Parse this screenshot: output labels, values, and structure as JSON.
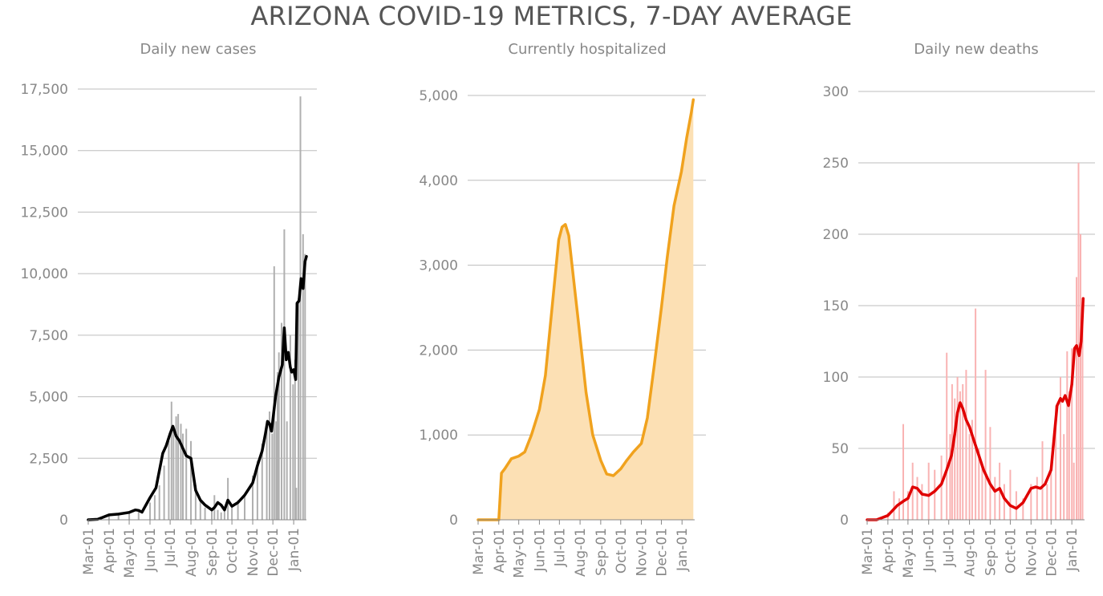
{
  "title": "ARIZONA COVID-19 METRICS, 7-DAY AVERAGE",
  "chart_data": [
    {
      "type": "bar",
      "title": "Daily new cases",
      "ylim": [
        0,
        17500
      ],
      "yticks": [
        0,
        2500,
        5000,
        7500,
        10000,
        12500,
        15000,
        17500
      ],
      "ytick_labels": [
        "0",
        "2,500",
        "5,000",
        "7,500",
        "10,000",
        "12,500",
        "15,000",
        "17,500"
      ],
      "xtick_labels": [
        "Mar-01",
        "Apr-01",
        "May-01",
        "Jun-01",
        "Jul-01",
        "Aug-01",
        "Sep-01",
        "Oct-01",
        "Nov-01",
        "Dec-01",
        "Jan-01"
      ],
      "x_range": [
        "2020-03-01",
        "2021-01-20"
      ],
      "grid": "y",
      "colors": {
        "bar": "#b0b0b0",
        "line": "#000000"
      },
      "series": [
        {
          "kind": "bar",
          "x": [
            "2020-03-15",
            "2020-04-01",
            "2020-04-15",
            "2020-05-01",
            "2020-05-15",
            "2020-06-01",
            "2020-06-08",
            "2020-06-15",
            "2020-06-22",
            "2020-06-29",
            "2020-07-03",
            "2020-07-06",
            "2020-07-10",
            "2020-07-13",
            "2020-07-17",
            "2020-07-20",
            "2020-07-25",
            "2020-08-01",
            "2020-08-08",
            "2020-08-15",
            "2020-08-22",
            "2020-09-01",
            "2020-09-05",
            "2020-09-10",
            "2020-09-15",
            "2020-09-20",
            "2020-09-25",
            "2020-10-01",
            "2020-10-10",
            "2020-10-20",
            "2020-11-01",
            "2020-11-08",
            "2020-11-15",
            "2020-11-22",
            "2020-11-26",
            "2020-11-30",
            "2020-12-03",
            "2020-12-06",
            "2020-12-08",
            "2020-12-10",
            "2020-12-14",
            "2020-12-18",
            "2020-12-22",
            "2020-12-27",
            "2020-12-31",
            "2021-01-03",
            "2021-01-05",
            "2021-01-08",
            "2021-01-11",
            "2021-01-15",
            "2021-01-18"
          ],
          "values": [
            30,
            180,
            240,
            320,
            420,
            700,
            1000,
            1400,
            2200,
            3200,
            4800,
            3800,
            4200,
            4300,
            3900,
            3500,
            3700,
            3200,
            1400,
            800,
            500,
            400,
            1000,
            400,
            300,
            500,
            1700,
            600,
            800,
            1000,
            1800,
            2400,
            3100,
            4000,
            4400,
            3500,
            10300,
            4000,
            6000,
            6800,
            8000,
            11800,
            4000,
            7500,
            5500,
            6500,
            1300,
            9000,
            17200,
            11600,
            10800
          ]
        },
        {
          "kind": "line",
          "x": [
            "2020-03-01",
            "2020-03-15",
            "2020-04-01",
            "2020-04-15",
            "2020-05-01",
            "2020-05-10",
            "2020-05-15",
            "2020-05-20",
            "2020-06-01",
            "2020-06-10",
            "2020-06-20",
            "2020-06-25",
            "2020-07-01",
            "2020-07-05",
            "2020-07-10",
            "2020-07-15",
            "2020-07-20",
            "2020-07-25",
            "2020-08-01",
            "2020-08-08",
            "2020-08-15",
            "2020-08-22",
            "2020-09-01",
            "2020-09-05",
            "2020-09-10",
            "2020-09-15",
            "2020-09-20",
            "2020-09-25",
            "2020-10-01",
            "2020-10-10",
            "2020-10-20",
            "2020-11-01",
            "2020-11-08",
            "2020-11-15",
            "2020-11-20",
            "2020-11-23",
            "2020-11-26",
            "2020-11-29",
            "2020-12-05",
            "2020-12-10",
            "2020-12-12",
            "2020-12-15",
            "2020-12-18",
            "2020-12-21",
            "2020-12-24",
            "2020-12-27",
            "2020-12-29",
            "2021-01-01",
            "2021-01-04",
            "2021-01-06",
            "2021-01-09",
            "2021-01-12",
            "2021-01-15",
            "2021-01-18",
            "2021-01-20"
          ],
          "values": [
            0,
            20,
            200,
            230,
            300,
            400,
            380,
            310,
            900,
            1300,
            2700,
            3000,
            3500,
            3800,
            3400,
            3200,
            2900,
            2600,
            2500,
            1200,
            800,
            600,
            400,
            500,
            700,
            600,
            400,
            800,
            550,
            700,
            1000,
            1500,
            2200,
            2800,
            3500,
            4000,
            3900,
            3600,
            5000,
            5800,
            6000,
            6300,
            7800,
            6500,
            6800,
            6200,
            6000,
            6100,
            5700,
            8800,
            8900,
            9800,
            9400,
            10500,
            10700
          ]
        }
      ]
    },
    {
      "type": "area",
      "title": "Currently hospitalized",
      "ylim": [
        0,
        5000
      ],
      "yticks": [
        0,
        1000,
        2000,
        3000,
        4000,
        5000
      ],
      "ytick_labels": [
        "0",
        "1,000",
        "2,000",
        "3,000",
        "4,000",
        "5,000"
      ],
      "xtick_labels": [
        "Mar-01",
        "Apr-01",
        "May-01",
        "Jun-01",
        "Jul-01",
        "Aug-01",
        "Sep-01",
        "Oct-01",
        "Nov-01",
        "Dec-01",
        "Jan-01"
      ],
      "x_range": [
        "2020-03-01",
        "2021-01-20"
      ],
      "grid": "y",
      "colors": {
        "bar": "#fce0b4",
        "line": "#f0a21e"
      },
      "series": [
        {
          "kind": "line",
          "x": [
            "2020-03-01",
            "2020-04-01",
            "2020-04-05",
            "2020-04-10",
            "2020-04-20",
            "2020-05-01",
            "2020-05-10",
            "2020-05-20",
            "2020-06-01",
            "2020-06-10",
            "2020-06-20",
            "2020-06-30",
            "2020-07-05",
            "2020-07-10",
            "2020-07-15",
            "2020-07-20",
            "2020-07-30",
            "2020-08-10",
            "2020-08-20",
            "2020-09-01",
            "2020-09-10",
            "2020-09-20",
            "2020-10-01",
            "2020-10-10",
            "2020-10-20",
            "2020-11-01",
            "2020-11-10",
            "2020-11-20",
            "2020-12-01",
            "2020-12-10",
            "2020-12-20",
            "2020-12-31",
            "2021-01-08",
            "2021-01-15",
            "2021-01-18"
          ],
          "values": [
            0,
            0,
            550,
            600,
            720,
            750,
            800,
            1000,
            1300,
            1700,
            2500,
            3300,
            3450,
            3480,
            3350,
            3000,
            2300,
            1500,
            1000,
            700,
            540,
            520,
            600,
            700,
            800,
            900,
            1200,
            1800,
            2500,
            3100,
            3700,
            4100,
            4500,
            4800,
            4950
          ]
        }
      ]
    },
    {
      "type": "bar",
      "title": "Daily new deaths",
      "ylim": [
        0,
        300
      ],
      "yticks": [
        0,
        50,
        100,
        150,
        200,
        250,
        300
      ],
      "ytick_labels": [
        "0",
        "50",
        "100",
        "150",
        "200",
        "250",
        "300"
      ],
      "xtick_labels": [
        "Mar-01",
        "Apr-01",
        "May-01",
        "Jun-01",
        "Jul-01",
        "Aug-01",
        "Sep-01",
        "Oct-01",
        "Nov-01",
        "Dec-01",
        "Jan-01"
      ],
      "x_range": [
        "2020-03-01",
        "2021-01-20"
      ],
      "grid": "y",
      "colors": {
        "bar": "#f9b3b3",
        "line": "#e00000"
      },
      "series": [
        {
          "kind": "bar",
          "x": [
            "2020-04-01",
            "2020-04-10",
            "2020-04-18",
            "2020-04-24",
            "2020-05-01",
            "2020-05-08",
            "2020-05-15",
            "2020-05-22",
            "2020-06-01",
            "2020-06-10",
            "2020-06-20",
            "2020-06-28",
            "2020-07-03",
            "2020-07-06",
            "2020-07-10",
            "2020-07-14",
            "2020-07-18",
            "2020-07-22",
            "2020-07-27",
            "2020-08-01",
            "2020-08-05",
            "2020-08-10",
            "2020-08-15",
            "2020-08-20",
            "2020-08-25",
            "2020-09-01",
            "2020-09-08",
            "2020-09-15",
            "2020-09-22",
            "2020-10-01",
            "2020-10-10",
            "2020-10-20",
            "2020-11-01",
            "2020-11-10",
            "2020-11-18",
            "2020-11-25",
            "2020-12-01",
            "2020-12-08",
            "2020-12-15",
            "2020-12-20",
            "2020-12-25",
            "2020-12-28",
            "2021-01-01",
            "2021-01-04",
            "2021-01-08",
            "2021-01-11",
            "2021-01-14",
            "2021-01-17"
          ],
          "values": [
            5,
            20,
            15,
            67,
            20,
            40,
            30,
            25,
            40,
            35,
            45,
            117,
            60,
            95,
            85,
            100,
            90,
            95,
            105,
            60,
            70,
            148,
            50,
            40,
            105,
            65,
            30,
            40,
            25,
            35,
            20,
            15,
            25,
            30,
            55,
            25,
            35,
            80,
            100,
            60,
            118,
            90,
            120,
            40,
            170,
            250,
            200,
            140
          ]
        },
        {
          "kind": "line",
          "x": [
            "2020-03-01",
            "2020-03-15",
            "2020-04-01",
            "2020-04-15",
            "2020-04-24",
            "2020-05-01",
            "2020-05-08",
            "2020-05-15",
            "2020-05-22",
            "2020-06-01",
            "2020-06-10",
            "2020-06-20",
            "2020-06-28",
            "2020-07-05",
            "2020-07-10",
            "2020-07-14",
            "2020-07-18",
            "2020-07-22",
            "2020-07-27",
            "2020-08-01",
            "2020-08-08",
            "2020-08-15",
            "2020-08-22",
            "2020-09-01",
            "2020-09-08",
            "2020-09-15",
            "2020-09-22",
            "2020-10-01",
            "2020-10-10",
            "2020-10-20",
            "2020-11-01",
            "2020-11-08",
            "2020-11-15",
            "2020-11-22",
            "2020-12-01",
            "2020-12-05",
            "2020-12-10",
            "2020-12-15",
            "2020-12-18",
            "2020-12-22",
            "2020-12-27",
            "2021-01-01",
            "2021-01-05",
            "2021-01-08",
            "2021-01-12",
            "2021-01-15",
            "2021-01-18"
          ],
          "values": [
            0,
            0,
            3,
            10,
            13,
            15,
            23,
            22,
            18,
            17,
            20,
            25,
            35,
            45,
            60,
            75,
            82,
            78,
            70,
            65,
            55,
            45,
            35,
            25,
            20,
            22,
            15,
            10,
            8,
            12,
            22,
            23,
            22,
            25,
            35,
            55,
            80,
            85,
            83,
            87,
            80,
            95,
            120,
            122,
            115,
            125,
            155
          ]
        }
      ]
    }
  ]
}
